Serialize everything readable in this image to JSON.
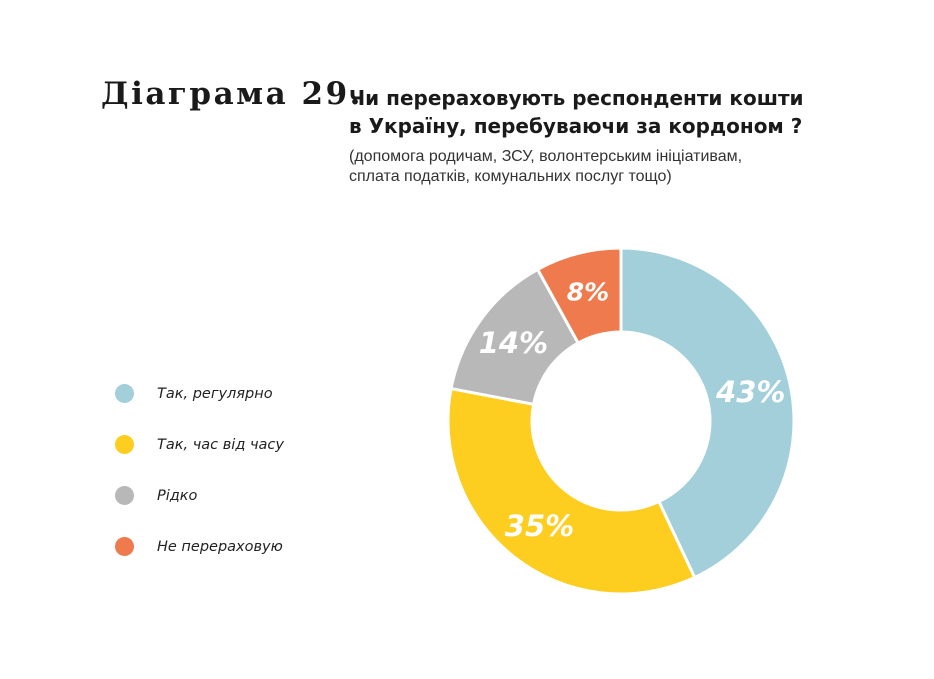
{
  "figure_label": "Діаграма 29.",
  "question": {
    "line1": "Чи перераховують респонденти кошти",
    "line2": "в Україну, перебуваючи за кордоном ?"
  },
  "subtitle": {
    "line1": "(допомога родичам, ЗСУ, волонтерським ініціативам,",
    "line2": "сплата податків, комунальних послуг тощо)"
  },
  "chart_data": {
    "type": "pie",
    "variant": "donut",
    "legend_position": "left",
    "categories": [
      "Так, регулярно",
      "Так, час від часу",
      "Рідко",
      "Не перераховую"
    ],
    "values": [
      43,
      35,
      14,
      8
    ],
    "value_labels": [
      "43%",
      "35%",
      "14%",
      "8%"
    ],
    "colors": [
      "#a2cfd9",
      "#fdcd1f",
      "#b8b8b8",
      "#ef7a4d"
    ],
    "start_angle_deg": 0,
    "direction": "clockwise"
  }
}
